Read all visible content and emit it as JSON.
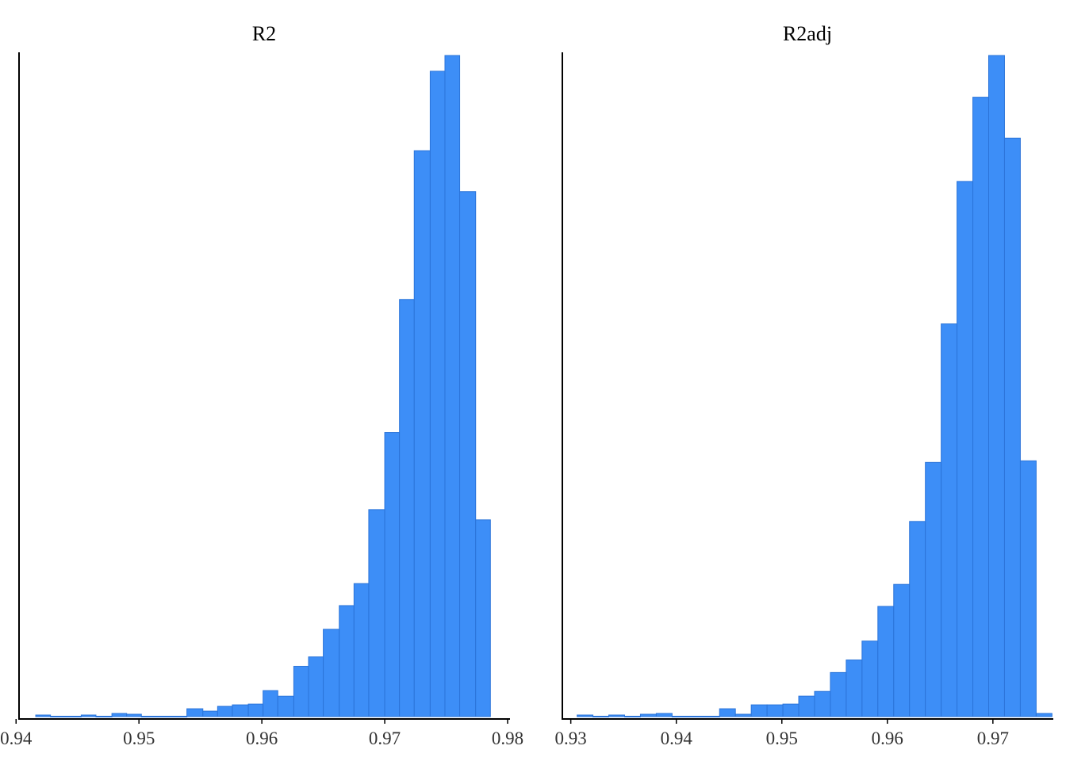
{
  "chart_data": [
    {
      "type": "bar",
      "title": "R2",
      "xlabel": "",
      "ylabel": "",
      "xlim": [
        0.9405,
        0.98
      ],
      "xticks": [
        "0.94",
        "0.95",
        "0.96",
        "0.97",
        "0.98"
      ],
      "ylim": [
        0,
        1.0
      ],
      "grid": false,
      "color": "#3d8ef7",
      "bins": [
        {
          "x0": 0.9416,
          "x1": 0.9428,
          "value": 0.0024
        },
        {
          "x0": 0.9428,
          "x1": 0.9441,
          "value": 0.0006
        },
        {
          "x0": 0.9441,
          "x1": 0.9453,
          "value": 0.0006
        },
        {
          "x0": 0.9453,
          "x1": 0.9465,
          "value": 0.0024
        },
        {
          "x0": 0.9465,
          "x1": 0.9478,
          "value": 0.0006
        },
        {
          "x0": 0.9478,
          "x1": 0.949,
          "value": 0.0048
        },
        {
          "x0": 0.949,
          "x1": 0.9502,
          "value": 0.0036
        },
        {
          "x0": 0.9502,
          "x1": 0.9515,
          "value": 0.0006
        },
        {
          "x0": 0.9515,
          "x1": 0.9527,
          "value": 0.0006
        },
        {
          "x0": 0.9527,
          "x1": 0.9539,
          "value": 0.0006
        },
        {
          "x0": 0.9539,
          "x1": 0.9552,
          "value": 0.0119
        },
        {
          "x0": 0.9552,
          "x1": 0.9564,
          "value": 0.0083
        },
        {
          "x0": 0.9564,
          "x1": 0.9576,
          "value": 0.0155
        },
        {
          "x0": 0.9576,
          "x1": 0.9589,
          "value": 0.0178
        },
        {
          "x0": 0.9589,
          "x1": 0.9601,
          "value": 0.019
        },
        {
          "x0": 0.9601,
          "x1": 0.9613,
          "value": 0.0393
        },
        {
          "x0": 0.9613,
          "x1": 0.9626,
          "value": 0.0309
        },
        {
          "x0": 0.9626,
          "x1": 0.9638,
          "value": 0.0761
        },
        {
          "x0": 0.9638,
          "x1": 0.965,
          "value": 0.0903
        },
        {
          "x0": 0.965,
          "x1": 0.9663,
          "value": 0.1321
        },
        {
          "x0": 0.9663,
          "x1": 0.9675,
          "value": 0.1679
        },
        {
          "x0": 0.9675,
          "x1": 0.9687,
          "value": 0.2012
        },
        {
          "x0": 0.9687,
          "x1": 0.97,
          "value": 0.3131
        },
        {
          "x0": 0.97,
          "x1": 0.9712,
          "value": 0.4298
        },
        {
          "x0": 0.9712,
          "x1": 0.9724,
          "value": 0.631
        },
        {
          "x0": 0.9724,
          "x1": 0.9737,
          "value": 0.856
        },
        {
          "x0": 0.9737,
          "x1": 0.9749,
          "value": 0.9762
        },
        {
          "x0": 0.9749,
          "x1": 0.9761,
          "value": 1.0
        },
        {
          "x0": 0.9761,
          "x1": 0.9774,
          "value": 0.7941
        },
        {
          "x0": 0.9774,
          "x1": 0.9786,
          "value": 0.2976
        }
      ]
    },
    {
      "type": "bar",
      "title": "R2adj",
      "xlabel": "",
      "ylabel": "",
      "xlim": [
        0.9295,
        0.9755
      ],
      "xticks": [
        "0.93",
        "0.94",
        "0.95",
        "0.96",
        "0.97"
      ],
      "ylim": [
        0,
        1.0
      ],
      "grid": false,
      "color": "#3d8ef7",
      "bins": [
        {
          "x0": 0.9306,
          "x1": 0.9321,
          "value": 0.0024
        },
        {
          "x0": 0.9321,
          "x1": 0.9336,
          "value": 0.0006
        },
        {
          "x0": 0.9336,
          "x1": 0.9351,
          "value": 0.0024
        },
        {
          "x0": 0.9351,
          "x1": 0.9366,
          "value": 0.0006
        },
        {
          "x0": 0.9366,
          "x1": 0.9381,
          "value": 0.0036
        },
        {
          "x0": 0.9381,
          "x1": 0.9396,
          "value": 0.0048
        },
        {
          "x0": 0.9396,
          "x1": 0.9411,
          "value": 0.0006
        },
        {
          "x0": 0.9411,
          "x1": 0.9426,
          "value": 0.0006
        },
        {
          "x0": 0.9426,
          "x1": 0.9441,
          "value": 0.0006
        },
        {
          "x0": 0.9441,
          "x1": 0.9456,
          "value": 0.0119
        },
        {
          "x0": 0.9456,
          "x1": 0.9471,
          "value": 0.0036
        },
        {
          "x0": 0.9471,
          "x1": 0.9486,
          "value": 0.0178
        },
        {
          "x0": 0.9486,
          "x1": 0.9501,
          "value": 0.0178
        },
        {
          "x0": 0.9501,
          "x1": 0.9516,
          "value": 0.019
        },
        {
          "x0": 0.9516,
          "x1": 0.9531,
          "value": 0.031
        },
        {
          "x0": 0.9531,
          "x1": 0.9546,
          "value": 0.0381
        },
        {
          "x0": 0.9546,
          "x1": 0.9561,
          "value": 0.0667
        },
        {
          "x0": 0.9561,
          "x1": 0.9576,
          "value": 0.0857
        },
        {
          "x0": 0.9576,
          "x1": 0.9591,
          "value": 0.1143
        },
        {
          "x0": 0.9591,
          "x1": 0.9606,
          "value": 0.1667
        },
        {
          "x0": 0.9606,
          "x1": 0.9621,
          "value": 0.2
        },
        {
          "x0": 0.9621,
          "x1": 0.9636,
          "value": 0.2952
        },
        {
          "x0": 0.9636,
          "x1": 0.9651,
          "value": 0.3845
        },
        {
          "x0": 0.9651,
          "x1": 0.9666,
          "value": 0.594
        },
        {
          "x0": 0.9666,
          "x1": 0.9681,
          "value": 0.8095
        },
        {
          "x0": 0.9681,
          "x1": 0.9696,
          "value": 0.9369
        },
        {
          "x0": 0.9696,
          "x1": 0.9711,
          "value": 1.0
        },
        {
          "x0": 0.9711,
          "x1": 0.9726,
          "value": 0.875
        },
        {
          "x0": 0.9726,
          "x1": 0.9741,
          "value": 0.3869
        },
        {
          "x0": 0.9741,
          "x1": 0.9756,
          "value": 0.0048
        }
      ]
    }
  ]
}
